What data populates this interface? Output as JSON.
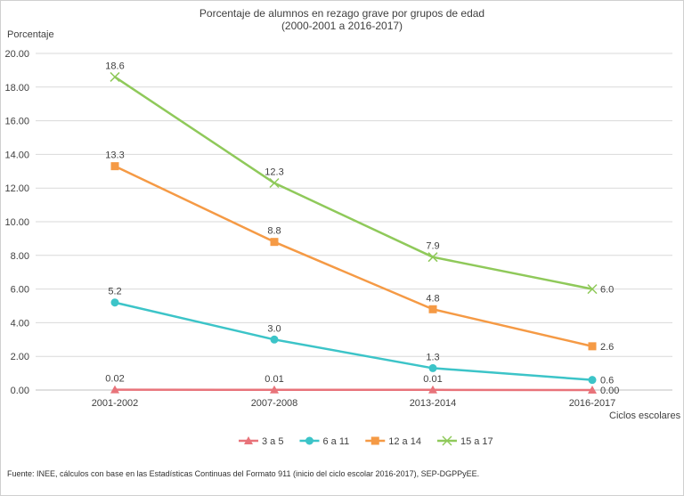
{
  "chart_data": {
    "type": "line",
    "title": "Porcentaje de alumnos en rezago grave por grupos de edad",
    "subtitle": "(2000-2001 a 2016-2017)",
    "ylabel": "Porcentaje",
    "xlabel": "Ciclos escolares",
    "categories": [
      "2001-2002",
      "2007-2008",
      "2013-2014",
      "2016-2017"
    ],
    "y_ticks": [
      "0.00",
      "2.00",
      "4.00",
      "6.00",
      "8.00",
      "10.00",
      "12.00",
      "14.00",
      "16.00",
      "18.00",
      "20.00"
    ],
    "ylim": [
      0,
      20
    ],
    "grid": true,
    "legend_position": "bottom",
    "series": [
      {
        "name": "3 a 5",
        "color": "#e8737a",
        "marker": "triangle",
        "values": [
          0.02,
          0.01,
          0.01,
          0.0
        ],
        "labels": [
          "0.02",
          "0.01",
          "0.01",
          "0.00"
        ]
      },
      {
        "name": "6 a 11",
        "color": "#3cc4c8",
        "marker": "circle",
        "values": [
          5.2,
          3.0,
          1.3,
          0.6
        ],
        "labels": [
          "5.2",
          "3.0",
          "1.3",
          "0.6"
        ]
      },
      {
        "name": "12 a 14",
        "color": "#f59a45",
        "marker": "square",
        "values": [
          13.3,
          8.8,
          4.8,
          2.6
        ],
        "labels": [
          "13.3",
          "8.8",
          "4.8",
          "2.6"
        ]
      },
      {
        "name": "15 a 17",
        "color": "#8fc95a",
        "marker": "x",
        "values": [
          18.6,
          12.3,
          7.9,
          6.0
        ],
        "labels": [
          "18.6",
          "12.3",
          "7.9",
          "6.0"
        ]
      }
    ]
  },
  "source_note": "Fuente: INEE, cálculos con base en las Estadísticas Continuas del Formato 911 (inicio del ciclo escolar 2016-2017),  SEP-DGPPyEE."
}
